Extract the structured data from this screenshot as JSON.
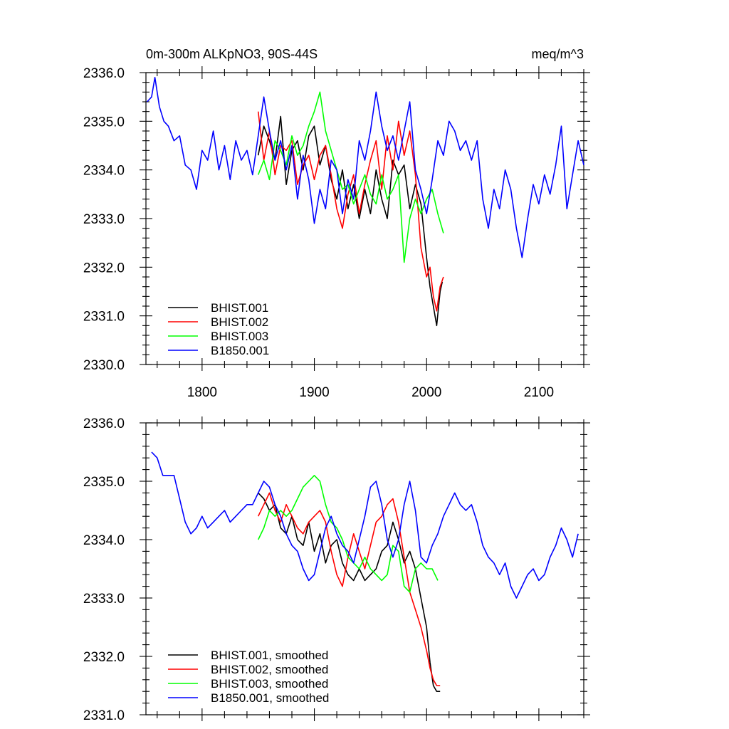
{
  "chart_data": [
    {
      "type": "line",
      "title_left": "0m-300m ALKpNO3, 90S-44S",
      "title_right": "meq/m^3",
      "xlim": [
        1750,
        2140
      ],
      "ylim": [
        2330.0,
        2336.0
      ],
      "xticks": [
        1800,
        1900,
        2000,
        2100
      ],
      "xtick_labels": [
        "1800",
        "1900",
        "2000",
        "2100"
      ],
      "yticks": [
        2330.0,
        2331.0,
        2332.0,
        2333.0,
        2334.0,
        2335.0,
        2336.0
      ],
      "ytick_labels": [
        "2330.0",
        "2331.0",
        "2332.0",
        "2333.0",
        "2334.0",
        "2335.0",
        "2336.0"
      ],
      "legend_position": "bottom-left",
      "series": [
        {
          "name": "BHIST.001",
          "color": "#000000",
          "x": [
            1850,
            1855,
            1860,
            1865,
            1870,
            1875,
            1880,
            1885,
            1890,
            1895,
            1900,
            1905,
            1910,
            1915,
            1920,
            1925,
            1930,
            1935,
            1940,
            1945,
            1950,
            1955,
            1960,
            1965,
            1970,
            1975,
            1980,
            1985,
            1990,
            1995,
            2000,
            2003,
            2006,
            2009,
            2012,
            2014
          ],
          "y": [
            2334.3,
            2334.9,
            2334.6,
            2334.2,
            2335.1,
            2333.7,
            2334.4,
            2334.6,
            2334.0,
            2334.7,
            2334.9,
            2334.1,
            2334.5,
            2333.8,
            2333.4,
            2334.0,
            2333.2,
            2333.7,
            2333.0,
            2333.6,
            2333.1,
            2334.0,
            2333.4,
            2333.0,
            2334.2,
            2333.9,
            2334.1,
            2333.2,
            2333.7,
            2333.3,
            2332.2,
            2331.6,
            2331.2,
            2330.8,
            2331.5,
            2331.7
          ]
        },
        {
          "name": "BHIST.002",
          "color": "#ff0000",
          "x": [
            1850,
            1855,
            1860,
            1865,
            1870,
            1875,
            1880,
            1885,
            1890,
            1895,
            1900,
            1905,
            1910,
            1915,
            1920,
            1925,
            1930,
            1935,
            1940,
            1945,
            1950,
            1955,
            1960,
            1965,
            1970,
            1975,
            1980,
            1985,
            1990,
            1995,
            2000,
            2003,
            2006,
            2009,
            2012,
            2015
          ],
          "y": [
            2335.2,
            2334.2,
            2334.8,
            2333.9,
            2334.5,
            2334.4,
            2334.6,
            2333.7,
            2334.1,
            2334.3,
            2333.8,
            2334.3,
            2334.5,
            2333.9,
            2333.2,
            2332.8,
            2333.5,
            2333.9,
            2333.1,
            2333.7,
            2334.2,
            2334.6,
            2333.6,
            2334.7,
            2334.0,
            2335.0,
            2334.3,
            2334.8,
            2333.9,
            2332.4,
            2331.8,
            2332.0,
            2331.4,
            2331.1,
            2331.6,
            2331.8
          ]
        },
        {
          "name": "BHIST.003",
          "color": "#00ff00",
          "x": [
            1850,
            1855,
            1860,
            1865,
            1870,
            1875,
            1880,
            1885,
            1890,
            1895,
            1900,
            1905,
            1910,
            1915,
            1920,
            1925,
            1930,
            1935,
            1940,
            1945,
            1950,
            1955,
            1960,
            1965,
            1970,
            1975,
            1980,
            1985,
            1990,
            1995,
            2000,
            2005,
            2010,
            2015
          ],
          "y": [
            2333.9,
            2334.2,
            2333.8,
            2334.6,
            2334.4,
            2334.1,
            2334.7,
            2334.3,
            2334.5,
            2334.9,
            2335.2,
            2335.6,
            2334.8,
            2334.4,
            2334.0,
            2333.6,
            2333.7,
            2333.3,
            2333.6,
            2333.9,
            2333.5,
            2333.3,
            2333.9,
            2333.4,
            2333.6,
            2333.9,
            2332.1,
            2333.0,
            2333.4,
            2333.1,
            2333.4,
            2333.6,
            2333.1,
            2332.7
          ]
        },
        {
          "name": "B1850.001",
          "color": "#0000ff",
          "x": [
            1751,
            1755,
            1758,
            1762,
            1766,
            1770,
            1775,
            1780,
            1785,
            1790,
            1795,
            1800,
            1805,
            1810,
            1815,
            1820,
            1825,
            1830,
            1835,
            1840,
            1845,
            1850,
            1855,
            1860,
            1865,
            1870,
            1875,
            1880,
            1885,
            1890,
            1895,
            1900,
            1905,
            1910,
            1915,
            1920,
            1925,
            1930,
            1935,
            1940,
            1945,
            1950,
            1955,
            1960,
            1965,
            1970,
            1975,
            1980,
            1985,
            1990,
            1995,
            2000,
            2005,
            2010,
            2015,
            2020,
            2025,
            2030,
            2035,
            2040,
            2045,
            2050,
            2055,
            2060,
            2065,
            2070,
            2075,
            2080,
            2085,
            2090,
            2095,
            2100,
            2105,
            2110,
            2115,
            2120,
            2125,
            2130,
            2135,
            2140
          ],
          "y": [
            2335.4,
            2335.5,
            2335.9,
            2335.3,
            2335.0,
            2334.9,
            2334.6,
            2334.7,
            2334.1,
            2334.0,
            2333.6,
            2334.4,
            2334.2,
            2334.8,
            2334.0,
            2334.5,
            2333.8,
            2334.6,
            2334.2,
            2334.4,
            2333.9,
            2334.7,
            2335.5,
            2334.8,
            2334.2,
            2334.6,
            2334.0,
            2334.5,
            2333.4,
            2334.3,
            2333.8,
            2332.9,
            2333.6,
            2333.2,
            2334.2,
            2334.0,
            2333.1,
            2333.8,
            2333.4,
            2334.6,
            2334.2,
            2334.8,
            2335.6,
            2334.9,
            2334.4,
            2334.7,
            2334.2,
            2334.8,
            2335.4,
            2334.0,
            2333.6,
            2333.1,
            2333.8,
            2334.6,
            2334.3,
            2335.0,
            2334.8,
            2334.4,
            2334.6,
            2334.2,
            2334.6,
            2333.4,
            2332.8,
            2333.6,
            2333.2,
            2334.0,
            2333.6,
            2332.8,
            2332.2,
            2333.0,
            2333.7,
            2333.3,
            2333.9,
            2333.5,
            2334.1,
            2334.9,
            2333.2,
            2333.9,
            2334.6,
            2334.1
          ]
        }
      ]
    },
    {
      "type": "line",
      "xlim": [
        1750,
        2140
      ],
      "ylim": [
        2331.0,
        2336.0
      ],
      "xticks": [
        1800,
        1900,
        2000,
        2100
      ],
      "yticks": [
        2331.0,
        2332.0,
        2333.0,
        2334.0,
        2335.0,
        2336.0
      ],
      "ytick_labels": [
        "2331.0",
        "2332.0",
        "2333.0",
        "2334.0",
        "2335.0",
        "2336.0"
      ],
      "legend_position": "bottom-left",
      "series": [
        {
          "name": "BHIST.001, smoothed",
          "color": "#000000",
          "x": [
            1850,
            1855,
            1860,
            1865,
            1870,
            1875,
            1880,
            1885,
            1890,
            1895,
            1900,
            1905,
            1910,
            1915,
            1920,
            1925,
            1930,
            1935,
            1940,
            1945,
            1950,
            1955,
            1960,
            1965,
            1970,
            1975,
            1980,
            1985,
            1990,
            1995,
            2000,
            2003,
            2006,
            2009,
            2012
          ],
          "y": [
            2334.8,
            2334.7,
            2334.5,
            2334.6,
            2334.2,
            2334.1,
            2334.4,
            2334.0,
            2333.9,
            2334.3,
            2333.8,
            2334.1,
            2333.6,
            2333.9,
            2334.0,
            2333.6,
            2333.4,
            2333.3,
            2333.5,
            2333.3,
            2333.4,
            2333.5,
            2333.8,
            2333.9,
            2334.3,
            2334.0,
            2333.6,
            2333.8,
            2333.5,
            2333.0,
            2332.5,
            2331.9,
            2331.5,
            2331.4,
            2331.4
          ]
        },
        {
          "name": "BHIST.002, smoothed",
          "color": "#ff0000",
          "x": [
            1850,
            1855,
            1860,
            1865,
            1870,
            1875,
            1880,
            1885,
            1890,
            1895,
            1900,
            1905,
            1910,
            1915,
            1920,
            1925,
            1930,
            1935,
            1940,
            1945,
            1950,
            1955,
            1960,
            1965,
            1970,
            1975,
            1980,
            1985,
            1990,
            1995,
            2000,
            2003,
            2006,
            2009,
            2012
          ],
          "y": [
            2334.4,
            2334.6,
            2334.8,
            2334.5,
            2334.3,
            2334.6,
            2334.4,
            2334.2,
            2334.1,
            2334.3,
            2334.4,
            2334.5,
            2334.3,
            2333.8,
            2333.4,
            2333.2,
            2333.7,
            2334.1,
            2333.8,
            2333.5,
            2333.9,
            2334.3,
            2334.4,
            2334.6,
            2334.7,
            2334.3,
            2333.7,
            2333.1,
            2332.8,
            2332.5,
            2332.1,
            2331.8,
            2331.6,
            2331.5,
            2331.5
          ]
        },
        {
          "name": "BHIST.003, smoothed",
          "color": "#00ff00",
          "x": [
            1850,
            1855,
            1860,
            1865,
            1870,
            1875,
            1880,
            1885,
            1890,
            1895,
            1900,
            1905,
            1910,
            1915,
            1920,
            1925,
            1930,
            1935,
            1940,
            1945,
            1950,
            1955,
            1960,
            1965,
            1970,
            1975,
            1980,
            1985,
            1990,
            1995,
            2000,
            2005,
            2010
          ],
          "y": [
            2334.0,
            2334.2,
            2334.5,
            2334.4,
            2334.5,
            2334.4,
            2334.5,
            2334.7,
            2334.9,
            2335.0,
            2335.1,
            2335.0,
            2334.6,
            2334.3,
            2334.2,
            2334.0,
            2333.7,
            2333.6,
            2333.5,
            2333.7,
            2333.5,
            2333.4,
            2333.3,
            2333.4,
            2333.9,
            2333.8,
            2333.2,
            2333.1,
            2333.5,
            2333.6,
            2333.5,
            2333.5,
            2333.3
          ]
        },
        {
          "name": "B1850.001, smoothed",
          "color": "#0000ff",
          "x": [
            1755,
            1760,
            1765,
            1770,
            1775,
            1780,
            1785,
            1790,
            1795,
            1800,
            1805,
            1810,
            1815,
            1820,
            1825,
            1830,
            1835,
            1840,
            1845,
            1850,
            1855,
            1860,
            1865,
            1870,
            1875,
            1880,
            1885,
            1890,
            1895,
            1900,
            1905,
            1910,
            1915,
            1920,
            1925,
            1930,
            1935,
            1940,
            1945,
            1950,
            1955,
            1960,
            1965,
            1970,
            1975,
            1980,
            1985,
            1990,
            1995,
            2000,
            2005,
            2010,
            2015,
            2020,
            2025,
            2030,
            2035,
            2040,
            2045,
            2050,
            2055,
            2060,
            2065,
            2070,
            2075,
            2080,
            2085,
            2090,
            2095,
            2100,
            2105,
            2110,
            2115,
            2120,
            2125,
            2130,
            2135
          ],
          "y": [
            2335.5,
            2335.4,
            2335.1,
            2335.1,
            2335.1,
            2334.7,
            2334.3,
            2334.1,
            2334.2,
            2334.4,
            2334.2,
            2334.3,
            2334.4,
            2334.5,
            2334.3,
            2334.4,
            2334.5,
            2334.6,
            2334.6,
            2334.8,
            2335.0,
            2334.9,
            2334.6,
            2334.4,
            2334.1,
            2333.9,
            2333.8,
            2333.5,
            2333.3,
            2333.4,
            2333.8,
            2334.2,
            2334.4,
            2334.1,
            2333.9,
            2333.8,
            2333.6,
            2334.0,
            2334.4,
            2334.9,
            2335.0,
            2334.6,
            2334.0,
            2333.7,
            2334.0,
            2334.6,
            2335.0,
            2334.5,
            2333.7,
            2333.6,
            2333.9,
            2334.1,
            2334.4,
            2334.6,
            2334.8,
            2334.6,
            2334.5,
            2334.6,
            2334.3,
            2333.9,
            2333.7,
            2333.6,
            2333.4,
            2333.6,
            2333.2,
            2333.0,
            2333.2,
            2333.4,
            2333.5,
            2333.3,
            2333.4,
            2333.7,
            2333.9,
            2334.2,
            2334.0,
            2333.7,
            2334.1
          ]
        }
      ]
    }
  ]
}
